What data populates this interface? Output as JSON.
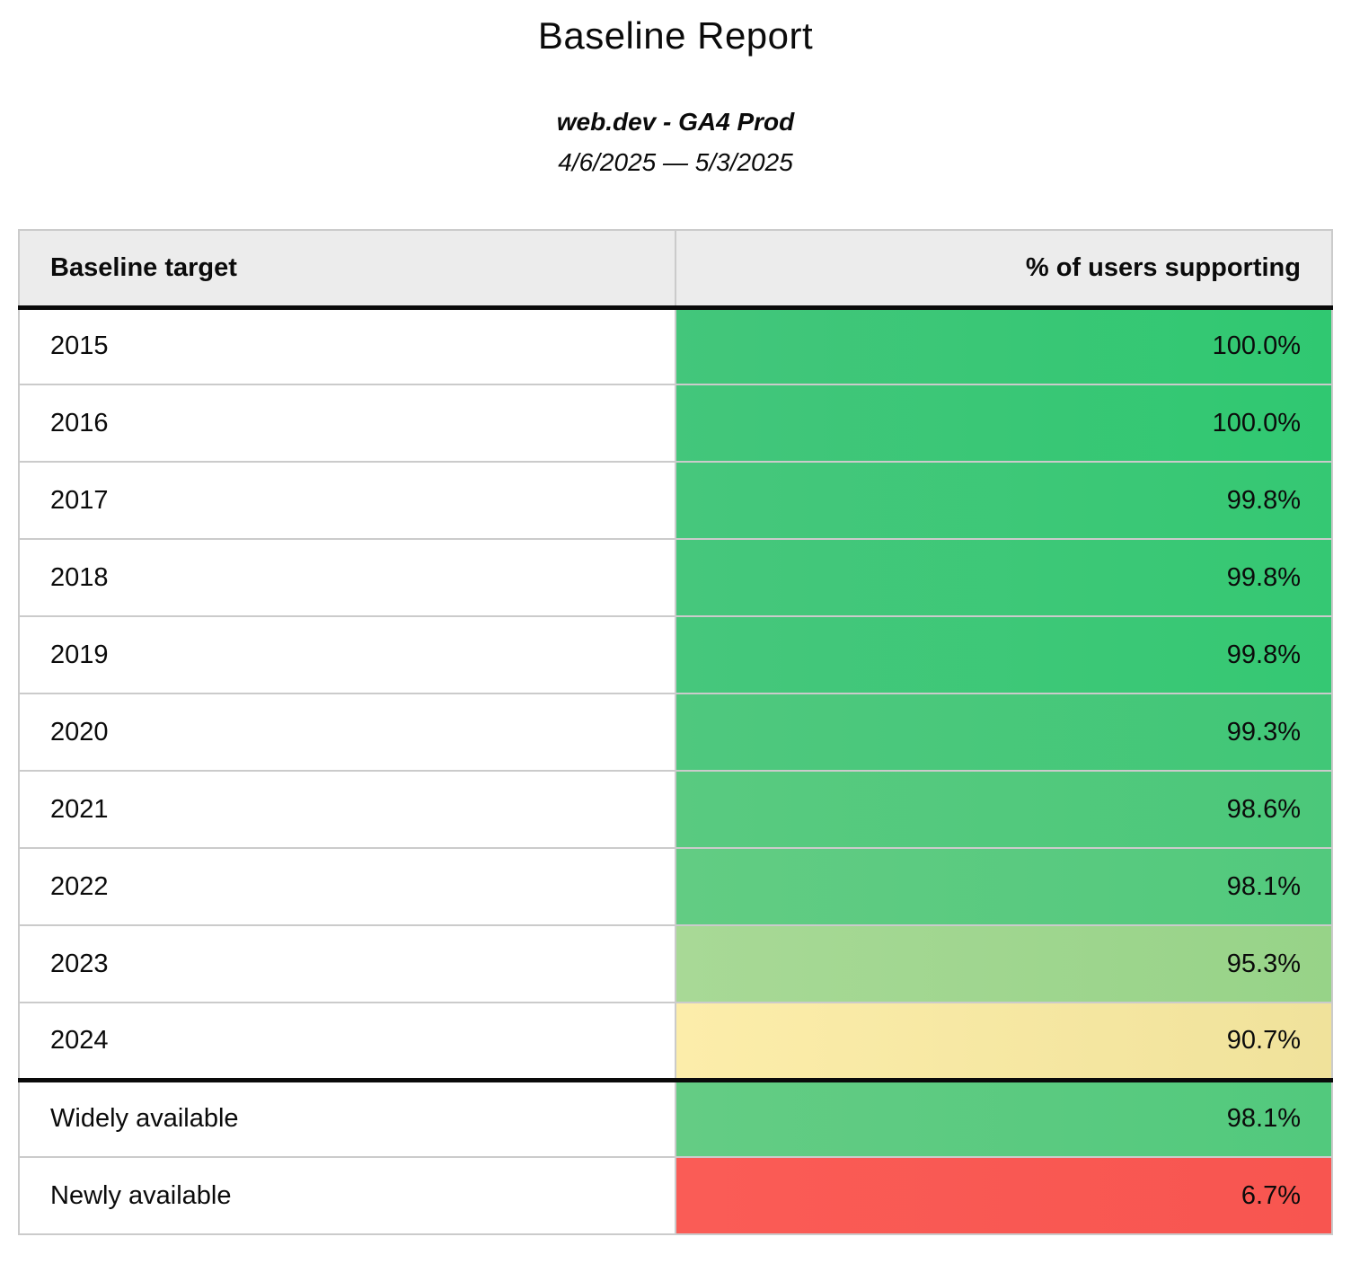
{
  "report": {
    "title": "Baseline Report",
    "property": "web.dev - GA4 Prod",
    "date_range": "4/6/2025 — 5/3/2025"
  },
  "table": {
    "columns": {
      "target": "Baseline target",
      "support": "% of users supporting"
    },
    "rows": [
      {
        "label": "2015",
        "value": "100.0%",
        "color_left": "#43c67b",
        "color_right": "#30c871"
      },
      {
        "label": "2016",
        "value": "100.0%",
        "color_left": "#43c67b",
        "color_right": "#30c871"
      },
      {
        "label": "2017",
        "value": "99.8%",
        "color_left": "#46c77c",
        "color_right": "#35c873"
      },
      {
        "label": "2018",
        "value": "99.8%",
        "color_left": "#46c77c",
        "color_right": "#35c873"
      },
      {
        "label": "2019",
        "value": "99.8%",
        "color_left": "#46c77c",
        "color_right": "#35c873"
      },
      {
        "label": "2020",
        "value": "99.3%",
        "color_left": "#4fc87e",
        "color_right": "#41c777"
      },
      {
        "label": "2021",
        "value": "98.6%",
        "color_left": "#59ca80",
        "color_right": "#4bc87a"
      },
      {
        "label": "2022",
        "value": "98.1%",
        "color_left": "#62cc83",
        "color_right": "#52c97d"
      },
      {
        "label": "2023",
        "value": "95.3%",
        "color_left": "#a8d996",
        "color_right": "#97d388"
      },
      {
        "label": "2024",
        "value": "90.7%",
        "color_left": "#fcedaa",
        "color_right": "#f0e29b"
      },
      {
        "label": "Widely available",
        "value": "98.1%",
        "color_left": "#64cc84",
        "color_right": "#52c97d",
        "section_start": true
      },
      {
        "label": "Newly available",
        "value": "6.7%",
        "color_left": "#fa5c56",
        "color_right": "#f85550"
      }
    ]
  },
  "colors": {
    "header_bg": "#ececec",
    "grid_border": "#cbcbcb",
    "section_rule": "#0a0a0a",
    "text": "#0b0b0b",
    "page_bg": "#ffffff"
  }
}
